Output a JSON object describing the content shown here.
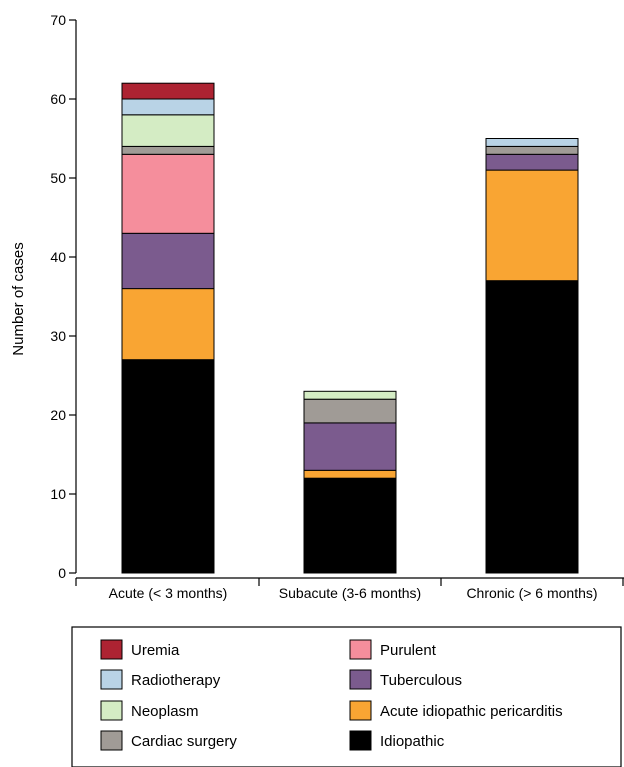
{
  "chart_data": {
    "type": "bar",
    "stacked": true,
    "title": "",
    "xlabel": "",
    "ylabel": "Number of cases",
    "ylim": [
      0,
      70
    ],
    "yticks": [
      0,
      10,
      20,
      30,
      40,
      50,
      60,
      70
    ],
    "grid": false,
    "legend_placement": "bottom",
    "categories": [
      "Acute (< 3 months)",
      "Subacute (3-6 months)",
      "Chronic (> 6 months)"
    ],
    "series": [
      {
        "name": "Idiopathic",
        "color": "#000000",
        "values": [
          27,
          12,
          37
        ]
      },
      {
        "name": "Acute idiopathic pericarditis",
        "color": "#f9a533",
        "values": [
          9,
          1,
          14
        ]
      },
      {
        "name": "Tuberculous",
        "color": "#7b5b8e",
        "values": [
          7,
          6,
          2
        ]
      },
      {
        "name": "Purulent",
        "color": "#f58e9c",
        "values": [
          10,
          0,
          0
        ]
      },
      {
        "name": "Cardiac surgery",
        "color": "#a09b96",
        "values": [
          1,
          3,
          1
        ]
      },
      {
        "name": "Neoplasm",
        "color": "#d4ecc4",
        "values": [
          4,
          1,
          0
        ]
      },
      {
        "name": "Radiotherapy",
        "color": "#b9d3e6",
        "values": [
          2,
          0,
          1
        ]
      },
      {
        "name": "Uremia",
        "color": "#ad2332",
        "values": [
          2,
          0,
          0
        ]
      }
    ],
    "legend_order": [
      "Uremia",
      "Radiotherapy",
      "Neoplasm",
      "Cardiac surgery",
      "Purulent",
      "Tuberculous",
      "Acute idiopathic pericarditis",
      "Idiopathic"
    ]
  }
}
